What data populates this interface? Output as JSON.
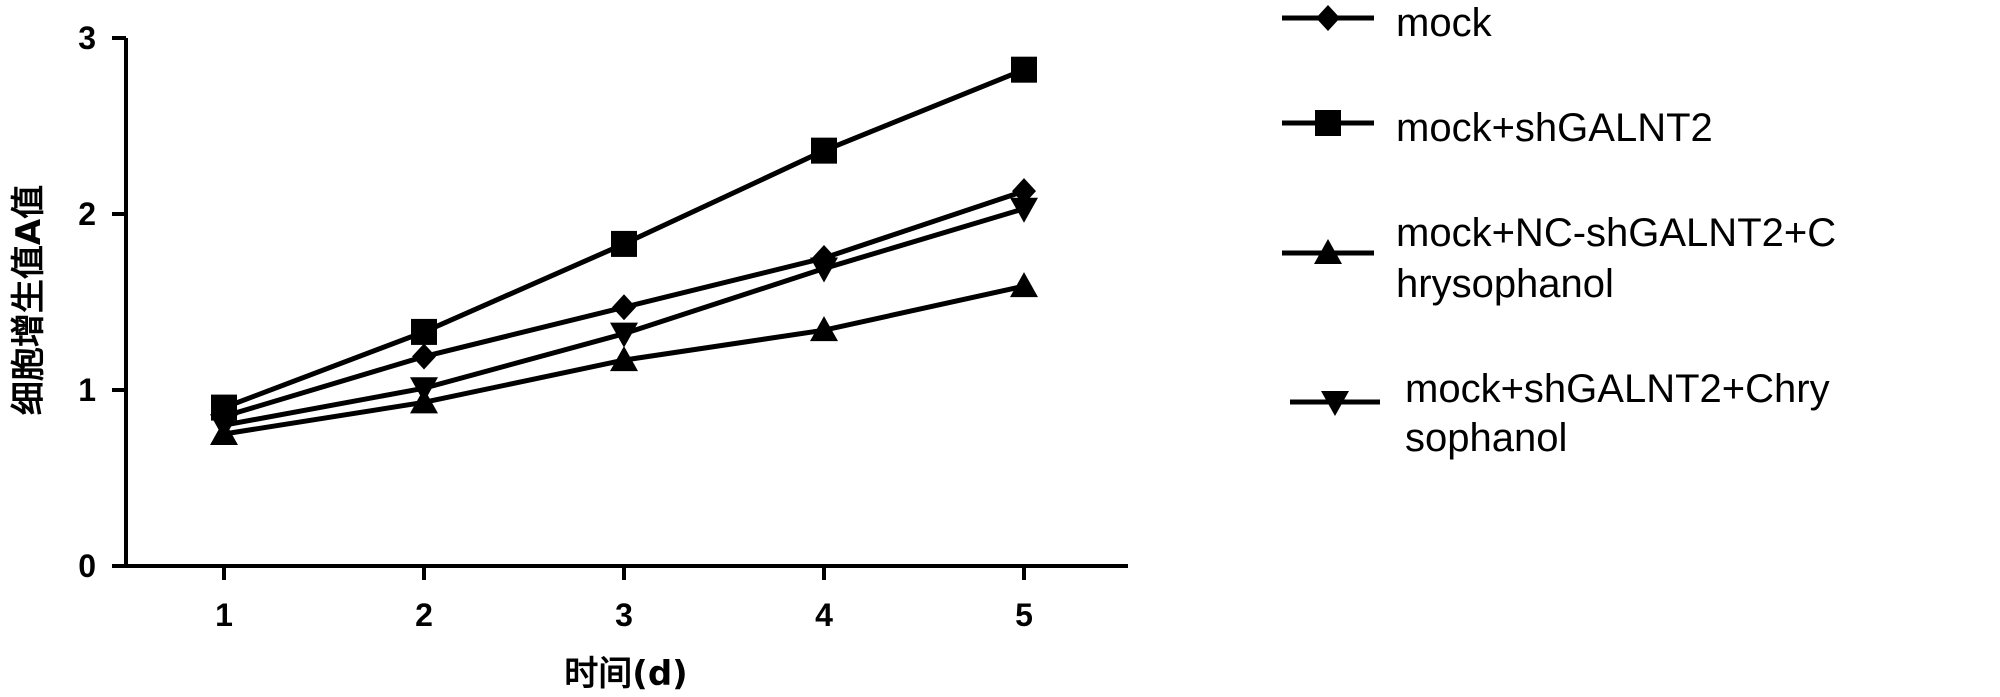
{
  "chart_data": {
    "type": "line",
    "title": "",
    "xlabel": "时间(d)",
    "ylabel": "细胞增生值A值",
    "x": [
      1,
      2,
      3,
      4,
      5
    ],
    "xticks": [
      "1",
      "2",
      "3",
      "4",
      "5"
    ],
    "yticks": [
      "0",
      "1",
      "2",
      "3"
    ],
    "ylim": [
      0,
      3
    ],
    "grid": false,
    "legend_position": "right",
    "series": [
      {
        "name": "mock",
        "marker": "diamond",
        "legend_lines": [
          "mock"
        ],
        "values": [
          0.85,
          1.19,
          1.47,
          1.75,
          2.13
        ]
      },
      {
        "name": "mock+shGALNT2",
        "marker": "square",
        "legend_lines": [
          "mock+shGALNT2"
        ],
        "values": [
          0.9,
          1.33,
          1.83,
          2.36,
          2.82
        ]
      },
      {
        "name": "mock+NC-shGALNT2+Chrysophanol",
        "marker": "triangle-up",
        "legend_lines": [
          "mock+NC-shGALNT2+C",
          "hrysophanol"
        ],
        "values": [
          0.75,
          0.93,
          1.17,
          1.34,
          1.59
        ]
      },
      {
        "name": "mock+shGALNT2+Chrysophanol",
        "marker": "triangle-down",
        "legend_lines": [
          "mock+shGALNT2+Chry",
          "sophanol"
        ],
        "values": [
          0.8,
          1.01,
          1.32,
          1.69,
          2.03
        ]
      }
    ]
  }
}
